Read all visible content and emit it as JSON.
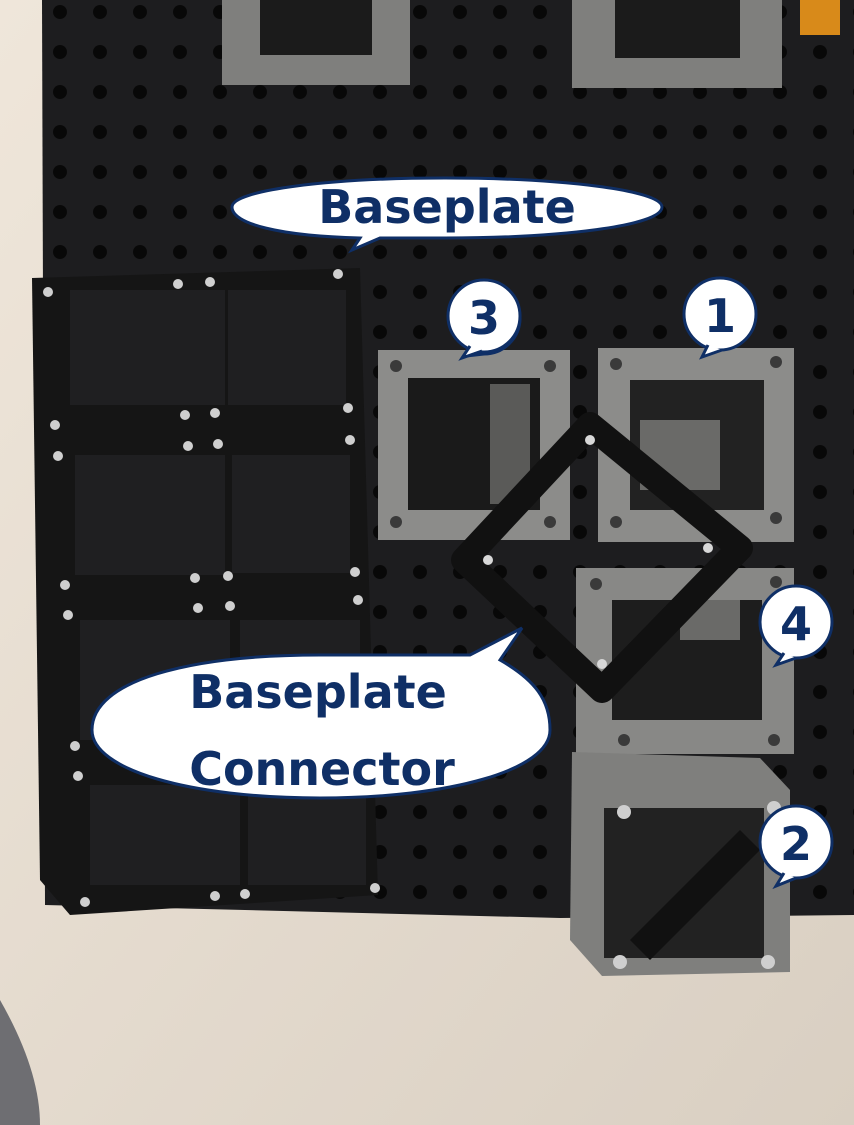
{
  "callouts": {
    "baseplate": "Baseplate",
    "connector_line1": "Baseplate",
    "connector_line2": "Connector",
    "cube_1": "1",
    "cube_2": "2",
    "cube_3": "3",
    "cube_4": "4"
  },
  "colors": {
    "table": "#e9dfd2",
    "baseplate": "#1d1d1f",
    "cube_gray": "#8c8c8a",
    "callout_fill": "#ffffff",
    "callout_text": "#0f2f66"
  }
}
